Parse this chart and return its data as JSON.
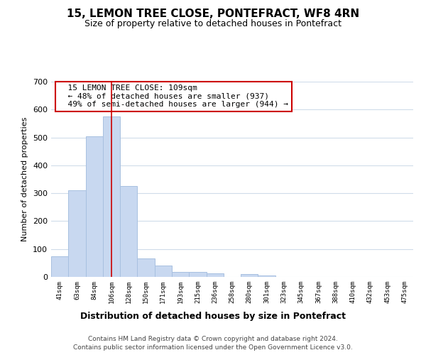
{
  "title": "15, LEMON TREE CLOSE, PONTEFRACT, WF8 4RN",
  "subtitle": "Size of property relative to detached houses in Pontefract",
  "xlabel": "Distribution of detached houses by size in Pontefract",
  "ylabel": "Number of detached properties",
  "bar_color": "#c8d8f0",
  "bar_edge_color": "#a8c0e0",
  "vline_color": "#cc0000",
  "vline_index": 3,
  "categories": [
    "41sqm",
    "63sqm",
    "84sqm",
    "106sqm",
    "128sqm",
    "150sqm",
    "171sqm",
    "193sqm",
    "215sqm",
    "236sqm",
    "258sqm",
    "280sqm",
    "301sqm",
    "323sqm",
    "345sqm",
    "367sqm",
    "388sqm",
    "410sqm",
    "432sqm",
    "453sqm",
    "475sqm"
  ],
  "values": [
    75,
    310,
    505,
    575,
    325,
    67,
    40,
    18,
    17,
    12,
    0,
    10,
    5,
    0,
    0,
    0,
    0,
    0,
    0,
    0,
    0
  ],
  "ylim": [
    0,
    700
  ],
  "yticks": [
    0,
    100,
    200,
    300,
    400,
    500,
    600,
    700
  ],
  "property_size": "109sqm",
  "property_name": "15 LEMON TREE CLOSE",
  "pct_smaller": 48,
  "n_smaller": 937,
  "pct_semi_larger": 49,
  "n_semi_larger": 944,
  "background_color": "#ffffff",
  "grid_color": "#d0dcea",
  "footnote1": "Contains HM Land Registry data © Crown copyright and database right 2024.",
  "footnote2": "Contains public sector information licensed under the Open Government Licence v3.0."
}
